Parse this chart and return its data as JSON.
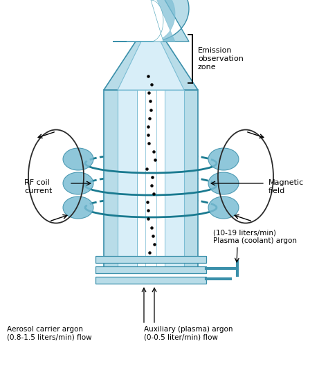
{
  "bg_color": "#ffffff",
  "c_outer": "#b8dce8",
  "c_mid": "#7bbdd4",
  "c_inner": "#5aaabf",
  "c_dark": "#3a8faa",
  "c_teal": "#2a8090",
  "c_vlb": "#d8eef8",
  "c_white": "#ffffff",
  "labels": {
    "emission": "Emission\nobservation\nzone",
    "rf_coil": "RF coil\ncurrent",
    "magnetic": "Magnetic\nfield",
    "aerosol": "Aerosol carrier argon\n(0.8-1.5 liters/min) flow",
    "auxiliary": "Auxiliary (plasma) argon\n(0-0.5 liter/min) flow",
    "plasma_coolant": "(10-19 liters/min)\nPlasma (coolant) argon"
  }
}
